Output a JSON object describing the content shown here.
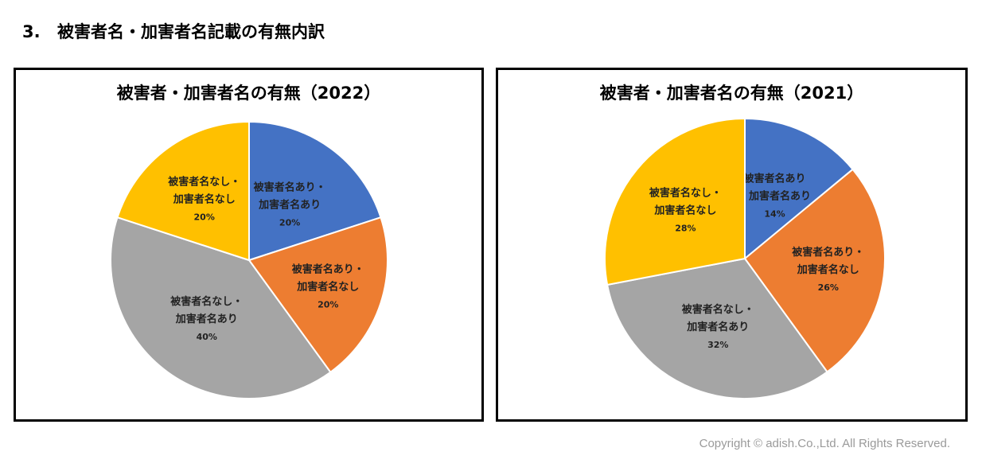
{
  "heading": {
    "number": "3.",
    "text": "被害者名・加害者名記載の有無内訳"
  },
  "chart_data": [
    {
      "type": "pie",
      "title": "被害者・加害者名の有無（2022）",
      "slices": [
        {
          "label": [
            "被害者名あり・",
            "加害者名あり"
          ],
          "value": 20,
          "pct_label": "20%",
          "color": "#4472C4"
        },
        {
          "label": [
            "被害者名あり・",
            "加害者名なし"
          ],
          "value": 20,
          "pct_label": "20%",
          "color": "#ED7D31"
        },
        {
          "label": [
            "被害者名なし・",
            "加害者名あり"
          ],
          "value": 40,
          "pct_label": "40%",
          "color": "#A5A5A5"
        },
        {
          "label": [
            "被害者名なし・",
            "加害者名なし"
          ],
          "value": 20,
          "pct_label": "20%",
          "color": "#FFC000"
        }
      ]
    },
    {
      "type": "pie",
      "title": "被害者・加害者名の有無（2021）",
      "slices": [
        {
          "label": [
            "被害者名あり",
            "・加害者名あり"
          ],
          "value": 14,
          "pct_label": "14%",
          "color": "#4472C4"
        },
        {
          "label": [
            "被害者名あり・",
            "加害者名なし"
          ],
          "value": 26,
          "pct_label": "26%",
          "color": "#ED7D31"
        },
        {
          "label": [
            "被害者名なし・",
            "加害者名あり"
          ],
          "value": 32,
          "pct_label": "32%",
          "color": "#A5A5A5"
        },
        {
          "label": [
            "被害者名なし・",
            "加害者名なし"
          ],
          "value": 28,
          "pct_label": "28%",
          "color": "#FFC000"
        }
      ]
    }
  ],
  "footer": {
    "copyright": "Copyright © adish.Co.,Ltd.  All Rights Reserved."
  }
}
